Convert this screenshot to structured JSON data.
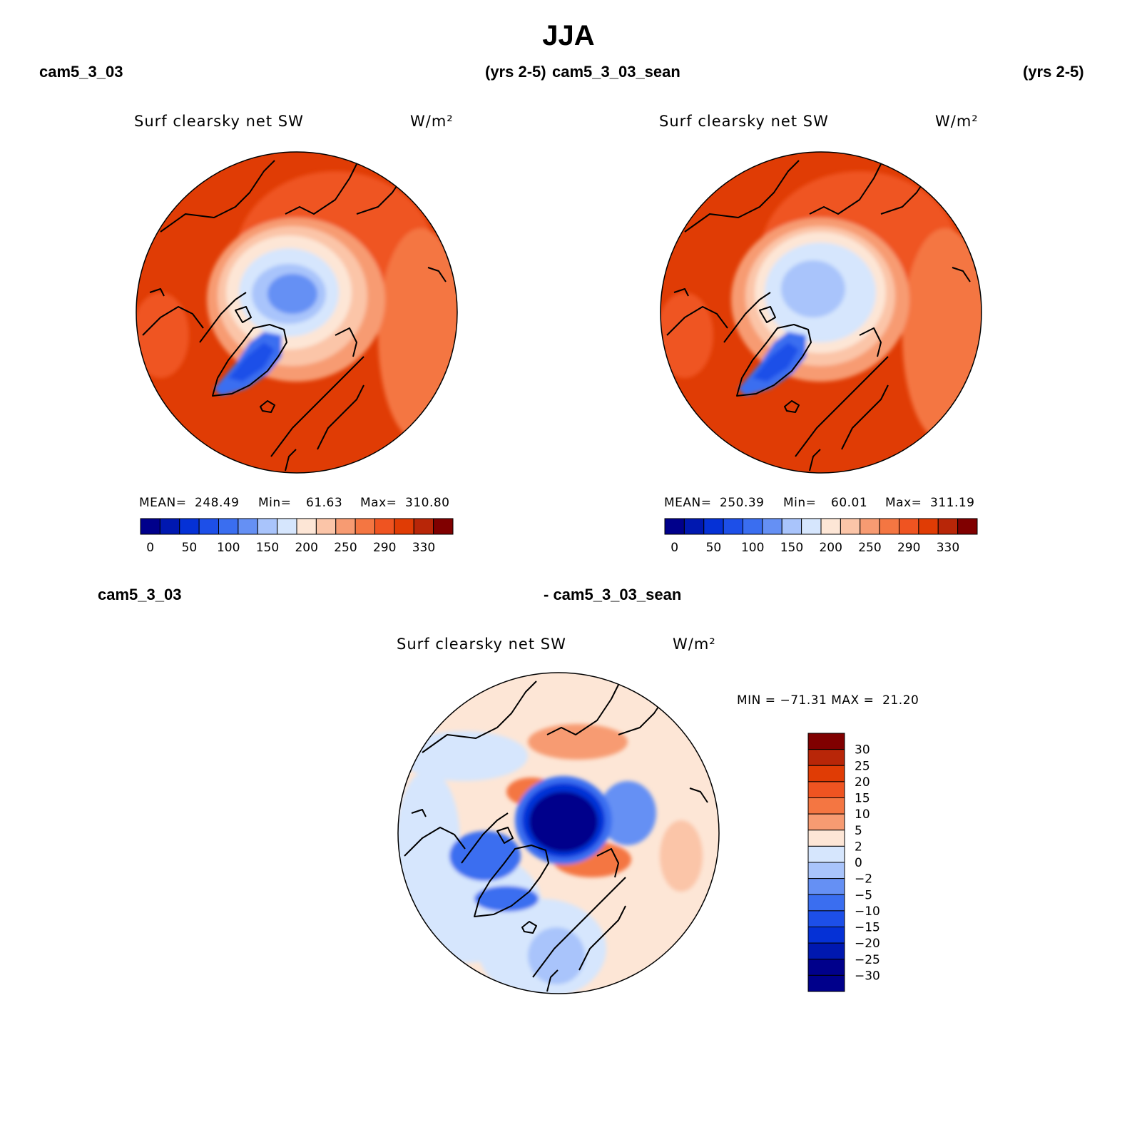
{
  "title": "JJA",
  "top_left": {
    "case": "cam5_3_03",
    "years": "(yrs 2-5)"
  },
  "top_right": {
    "case": "cam5_3_03_sean",
    "years": "(yrs 2-5)"
  },
  "bottom": {
    "case_a": "cam5_3_03",
    "case_b": "- cam5_3_03_sean"
  },
  "panels": [
    {
      "field": "Surf clearsky net SW",
      "units": "W/m²",
      "stats": {
        "mean_label": "MEAN=",
        "mean": "248.49",
        "min_label": "Min=",
        "min": "61.63",
        "max_label": "Max=",
        "max": "310.80"
      }
    },
    {
      "field": "Surf clearsky net SW",
      "units": "W/m²",
      "stats": {
        "mean_label": "MEAN=",
        "mean": "250.39",
        "min_label": "Min=",
        "min": "60.01",
        "max_label": "Max=",
        "max": "311.19"
      }
    },
    {
      "field": "Surf clearsky net SW",
      "units": "W/m²",
      "minmax_text": "MIN = −71.31 MAX =  21.20"
    }
  ],
  "colorbar_abs": {
    "colors": [
      "#00008b",
      "#0018b0",
      "#0531d6",
      "#1d4fe8",
      "#3a6ef0",
      "#6590f4",
      "#a9c4fb",
      "#d6e6fd",
      "#fde6d6",
      "#fbc5a8",
      "#f79b72",
      "#f47642",
      "#ef5421",
      "#e03c05",
      "#b82608",
      "#800000"
    ],
    "labels": [
      "0",
      "50",
      "100",
      "150",
      "200",
      "250",
      "290",
      "330"
    ]
  },
  "colorbar_diff": {
    "colors": [
      "#800000",
      "#b82608",
      "#e03c05",
      "#ef5421",
      "#f47642",
      "#f79b72",
      "#fde6d6",
      "#d6e6fd",
      "#a9c4fb",
      "#6590f4",
      "#3a6ef0",
      "#1d4fe8",
      "#0531d6",
      "#0018b0",
      "#00008b",
      "#00008b"
    ],
    "labels": [
      "30",
      "25",
      "20",
      "15",
      "10",
      "5",
      "2",
      "0",
      "−2",
      "−5",
      "−10",
      "−15",
      "−20",
      "−25",
      "−30"
    ]
  }
}
